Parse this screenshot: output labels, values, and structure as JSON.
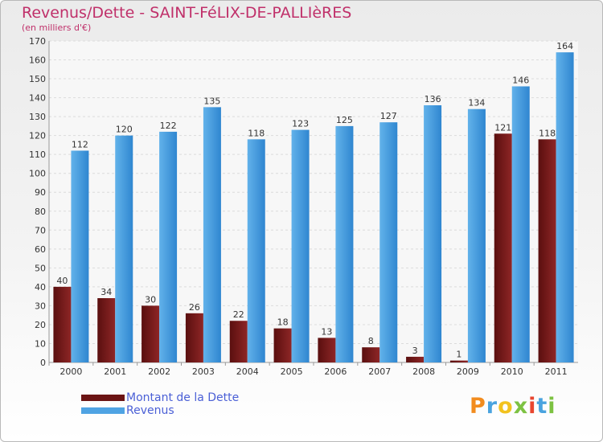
{
  "chart_data": {
    "type": "bar",
    "title": "Revenus/Dette - SAINT-FéLIX-DE-PALLIèRES",
    "subtitle": "(en milliers d'€)",
    "categories": [
      "2000",
      "2001",
      "2002",
      "2003",
      "2004",
      "2005",
      "2006",
      "2007",
      "2008",
      "2009",
      "2010",
      "2011"
    ],
    "series": [
      {
        "name": "Montant de la Dette",
        "color": "#7a1a1a",
        "values": [
          40,
          34,
          30,
          26,
          22,
          18,
          13,
          8,
          3,
          1,
          121,
          118
        ]
      },
      {
        "name": "Revenus",
        "color": "#4fa3e3",
        "values": [
          112,
          120,
          122,
          135,
          118,
          123,
          125,
          127,
          136,
          134,
          146,
          164
        ]
      }
    ],
    "ylim": [
      0,
      170
    ],
    "yticks": [
      0,
      10,
      20,
      30,
      40,
      50,
      60,
      70,
      80,
      90,
      100,
      110,
      120,
      130,
      140,
      150,
      160,
      170
    ],
    "grid": true,
    "legend_position": "bottom-left"
  },
  "logo": {
    "text": "Proxiti",
    "letter_colors": [
      "#f28c1e",
      "#4aa3df",
      "#f2c21e",
      "#7dc242",
      "#e8462f",
      "#4aa3df",
      "#7dc242"
    ]
  }
}
